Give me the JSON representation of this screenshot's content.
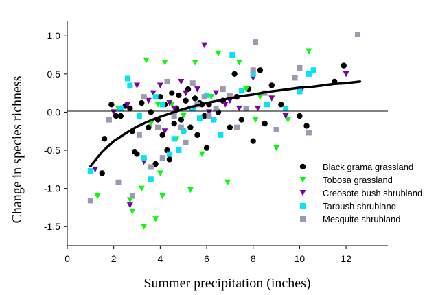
{
  "chart_data": {
    "type": "scatter",
    "title": "",
    "xlabel": "Summer precipitation (inches)",
    "ylabel": "Change in species richness",
    "xlim": [
      0,
      13.8
    ],
    "ylim": [
      -1.75,
      1.2
    ],
    "xticks": [
      0,
      2,
      4,
      6,
      8,
      10,
      12
    ],
    "yticks": [
      -1.5,
      -1.0,
      -0.5,
      0.0,
      0.5,
      1.0
    ],
    "xtick_labels": [
      "0",
      "2",
      "4",
      "6",
      "8",
      "10",
      "12"
    ],
    "ytick_labels": [
      "-1.5",
      "-1.0",
      "-0.5",
      "0.0",
      "0.5",
      "1.0"
    ],
    "reference_line_y": 0,
    "grid": false,
    "legend_position": "lower-right",
    "series": [
      {
        "name": "Black grama grassland",
        "marker": "circle",
        "color": "#000000",
        "points": [
          [
            1.5,
            -0.8
          ],
          [
            1.6,
            -0.35
          ],
          [
            1.9,
            0.1
          ],
          [
            2.1,
            -0.05
          ],
          [
            2.3,
            -0.05
          ],
          [
            2.5,
            0.08
          ],
          [
            2.7,
            0.05
          ],
          [
            2.8,
            -0.25
          ],
          [
            2.9,
            -0.52
          ],
          [
            3.0,
            -0.55
          ],
          [
            3.2,
            0.12
          ],
          [
            3.5,
            -0.2
          ],
          [
            3.6,
            0.0
          ],
          [
            3.8,
            -0.68
          ],
          [
            3.9,
            -0.1
          ],
          [
            4.0,
            0.2
          ],
          [
            4.1,
            -0.3
          ],
          [
            4.2,
            0.1
          ],
          [
            4.3,
            -0.5
          ],
          [
            4.4,
            -0.62
          ],
          [
            4.5,
            0.25
          ],
          [
            4.6,
            -0.15
          ],
          [
            4.7,
            0.05
          ],
          [
            4.8,
            0.22
          ],
          [
            4.9,
            -0.1
          ],
          [
            5.0,
            -0.25
          ],
          [
            5.1,
            0.15
          ],
          [
            5.2,
            0.3
          ],
          [
            5.3,
            -0.2
          ],
          [
            5.4,
            0.05
          ],
          [
            5.5,
            0.18
          ],
          [
            5.6,
            -0.3
          ],
          [
            5.7,
            0.12
          ],
          [
            5.8,
            0.1
          ],
          [
            5.9,
            -0.05
          ],
          [
            6.0,
            -0.47
          ],
          [
            6.1,
            0.1
          ],
          [
            6.3,
            -0.1
          ],
          [
            6.5,
            0.0
          ],
          [
            6.7,
            0.15
          ],
          [
            7.0,
            -0.2
          ],
          [
            7.2,
            0.5
          ],
          [
            7.3,
            0.2
          ],
          [
            7.5,
            -0.1
          ],
          [
            7.8,
            0.3
          ],
          [
            8.0,
            -0.38
          ],
          [
            8.3,
            0.55
          ],
          [
            8.5,
            -0.15
          ],
          [
            8.8,
            0.35
          ],
          [
            9.2,
            0.1
          ],
          [
            10.0,
            -0.05
          ],
          [
            10.3,
            -0.18
          ],
          [
            11.5,
            0.4
          ],
          [
            11.9,
            0.61
          ]
        ]
      },
      {
        "name": "Tobosa grassland",
        "marker": "triangle-down",
        "color": "#00ff00",
        "points": [
          [
            1.3,
            -1.1
          ],
          [
            2.2,
            0.05
          ],
          [
            2.7,
            -1.15
          ],
          [
            2.8,
            -1.3
          ],
          [
            3.2,
            -1.0
          ],
          [
            3.3,
            -1.5
          ],
          [
            3.4,
            0.68
          ],
          [
            3.6,
            -0.15
          ],
          [
            3.8,
            -1.4
          ],
          [
            3.9,
            0.1
          ],
          [
            4.0,
            -0.8
          ],
          [
            4.1,
            -1.1
          ],
          [
            4.2,
            0.65
          ],
          [
            4.5,
            0.1
          ],
          [
            4.7,
            -0.35
          ],
          [
            5.0,
            -0.05
          ],
          [
            5.3,
            -1.02
          ],
          [
            5.5,
            0.65
          ],
          [
            5.8,
            -0.55
          ],
          [
            6.2,
            0.2
          ],
          [
            6.5,
            0.77
          ],
          [
            6.9,
            -0.92
          ],
          [
            7.4,
            0.65
          ],
          [
            7.7,
            0.3
          ],
          [
            8.1,
            -0.1
          ],
          [
            8.3,
            0.2
          ],
          [
            8.8,
            0.18
          ],
          [
            9.0,
            -0.47
          ],
          [
            9.5,
            -0.1
          ],
          [
            10.4,
            0.8
          ]
        ]
      },
      {
        "name": "Creosote bush shrubland",
        "marker": "triangle-down",
        "color": "#7a00a8",
        "points": [
          [
            1.2,
            -0.75
          ],
          [
            2.0,
            0.0
          ],
          [
            2.6,
            0.1
          ],
          [
            2.7,
            -1.22
          ],
          [
            3.0,
            0.35
          ],
          [
            3.3,
            -0.65
          ],
          [
            3.5,
            0.15
          ],
          [
            3.7,
            0.25
          ],
          [
            4.0,
            0.35
          ],
          [
            4.2,
            -0.25
          ],
          [
            4.4,
            0.12
          ],
          [
            4.6,
            0.05
          ],
          [
            4.9,
            0.4
          ],
          [
            5.1,
            0.25
          ],
          [
            5.3,
            0.05
          ],
          [
            5.6,
            0.3
          ],
          [
            5.9,
            0.88
          ],
          [
            6.1,
            0.0
          ],
          [
            6.4,
            0.25
          ],
          [
            6.8,
            0.1
          ],
          [
            7.0,
            0.15
          ],
          [
            7.4,
            0.05
          ],
          [
            8.0,
            0.45
          ],
          [
            8.2,
            0.05
          ],
          [
            8.8,
            0.18
          ],
          [
            9.4,
            -0.05
          ],
          [
            10.1,
            0.3
          ],
          [
            12.0,
            0.5
          ]
        ]
      },
      {
        "name": "Tarbush shrubland",
        "marker": "square",
        "color": "#00e5f5",
        "points": [
          [
            1.0,
            -0.77
          ],
          [
            2.3,
            0.05
          ],
          [
            2.6,
            0.44
          ],
          [
            2.7,
            0.35
          ],
          [
            3.1,
            -0.05
          ],
          [
            3.3,
            -0.6
          ],
          [
            3.6,
            -0.88
          ],
          [
            3.8,
            0.2
          ],
          [
            4.1,
            0.1
          ],
          [
            4.4,
            -0.55
          ],
          [
            4.6,
            -0.35
          ],
          [
            4.8,
            -0.5
          ],
          [
            5.0,
            -0.25
          ],
          [
            5.4,
            0.05
          ],
          [
            5.7,
            -0.08
          ],
          [
            6.0,
            0.22
          ],
          [
            6.3,
            -0.1
          ],
          [
            6.6,
            -0.3
          ],
          [
            7.1,
            0.75
          ],
          [
            7.5,
            0.28
          ],
          [
            8.0,
            0.5
          ],
          [
            8.6,
            0.1
          ],
          [
            9.4,
            0.05
          ],
          [
            10.0,
            0.27
          ],
          [
            10.4,
            0.5
          ],
          [
            10.6,
            0.55
          ]
        ]
      },
      {
        "name": "Mesquite shrubland",
        "marker": "square",
        "color": "#9a9ab2",
        "points": [
          [
            1.0,
            -1.16
          ],
          [
            1.8,
            -0.1
          ],
          [
            2.2,
            -0.92
          ],
          [
            2.8,
            -1.1
          ],
          [
            3.1,
            -0.3
          ],
          [
            3.3,
            0.2
          ],
          [
            3.6,
            -0.72
          ],
          [
            3.9,
            -0.2
          ],
          [
            4.1,
            -0.6
          ],
          [
            4.3,
            0.4
          ],
          [
            4.6,
            -0.05
          ],
          [
            4.9,
            -0.2
          ],
          [
            5.1,
            -0.4
          ],
          [
            5.4,
            0.38
          ],
          [
            5.6,
            0.1
          ],
          [
            5.9,
            0.2
          ],
          [
            6.1,
            -0.05
          ],
          [
            6.4,
            0.05
          ],
          [
            6.7,
            0.3
          ],
          [
            7.0,
            0.22
          ],
          [
            7.3,
            -0.2
          ],
          [
            7.7,
            0.05
          ],
          [
            8.0,
            0.55
          ],
          [
            8.1,
            0.92
          ],
          [
            8.5,
            0.25
          ],
          [
            9.0,
            -0.23
          ],
          [
            9.8,
            0.45
          ],
          [
            10.0,
            0.58
          ],
          [
            10.4,
            -0.27
          ],
          [
            12.5,
            1.02
          ]
        ]
      }
    ],
    "fit_curve": {
      "type": "logarithmic",
      "points": [
        [
          1.0,
          -0.71
        ],
        [
          1.5,
          -0.52
        ],
        [
          2.0,
          -0.38
        ],
        [
          2.5,
          -0.28
        ],
        [
          3.0,
          -0.19
        ],
        [
          3.5,
          -0.12
        ],
        [
          4.0,
          -0.06
        ],
        [
          4.5,
          -0.01
        ],
        [
          5.0,
          0.04
        ],
        [
          5.5,
          0.08
        ],
        [
          6.0,
          0.12
        ],
        [
          6.5,
          0.15
        ],
        [
          7.0,
          0.18
        ],
        [
          7.5,
          0.21
        ],
        [
          8.0,
          0.23
        ],
        [
          8.5,
          0.26
        ],
        [
          9.0,
          0.28
        ],
        [
          9.5,
          0.3
        ],
        [
          10.0,
          0.32
        ],
        [
          10.5,
          0.33
        ],
        [
          11.0,
          0.35
        ],
        [
          11.5,
          0.37
        ],
        [
          12.0,
          0.38
        ],
        [
          12.6,
          0.4
        ]
      ]
    }
  }
}
